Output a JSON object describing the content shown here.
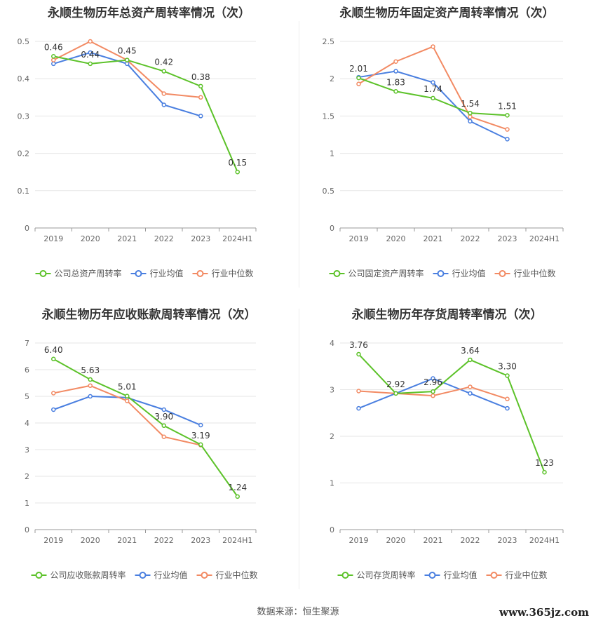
{
  "footer": {
    "source": "数据来源：恒生聚源",
    "watermark": "www.365jz.com"
  },
  "colors": {
    "company": "#5cc229",
    "avg": "#4a7fe0",
    "median": "#f28a63",
    "grid": "#e6e6e6",
    "axis": "#999999"
  },
  "chart_data": [
    {
      "type": "line",
      "title": "永顺生物历年总资产周转率情况（次）",
      "categories": [
        "2019",
        "2020",
        "2021",
        "2022",
        "2023",
        "2024H1"
      ],
      "ylim": [
        0,
        0.5
      ],
      "yticks": [
        0,
        0.1,
        0.2,
        0.3,
        0.4,
        0.5
      ],
      "series": [
        {
          "name": "公司总资产周转率",
          "values": [
            0.46,
            0.44,
            0.45,
            0.42,
            0.38,
            0.15
          ],
          "labels": [
            "0.46",
            "0.44",
            "0.45",
            "0.42",
            "0.38",
            "0.15"
          ]
        },
        {
          "name": "行业均值",
          "values": [
            0.44,
            0.47,
            0.44,
            0.33,
            0.3,
            null
          ]
        },
        {
          "name": "行业中位数",
          "values": [
            0.45,
            0.5,
            0.45,
            0.36,
            0.35,
            null
          ]
        }
      ]
    },
    {
      "type": "line",
      "title": "永顺生物历年固定资产周转率情况（次）",
      "categories": [
        "2019",
        "2020",
        "2021",
        "2022",
        "2023",
        "2024H1"
      ],
      "ylim": [
        0,
        2.5
      ],
      "yticks": [
        0,
        0.5,
        1,
        1.5,
        2,
        2.5
      ],
      "series": [
        {
          "name": "公司固定资产周转率",
          "values": [
            2.01,
            1.83,
            1.74,
            1.54,
            1.51,
            null
          ],
          "labels": [
            "2.01",
            "1.83",
            "1.74",
            "1.54",
            "1.51",
            ""
          ]
        },
        {
          "name": "行业均值",
          "values": [
            2.02,
            2.1,
            1.95,
            1.43,
            1.19,
            null
          ]
        },
        {
          "name": "行业中位数",
          "values": [
            1.93,
            2.23,
            2.43,
            1.49,
            1.32,
            null
          ]
        }
      ]
    },
    {
      "type": "line",
      "title": "永顺生物历年应收账款周转率情况（次）",
      "categories": [
        "2019",
        "2020",
        "2021",
        "2022",
        "2023",
        "2024H1"
      ],
      "ylim": [
        0,
        7
      ],
      "yticks": [
        0,
        1,
        2,
        3,
        4,
        5,
        6,
        7
      ],
      "series": [
        {
          "name": "公司应收账款周转率",
          "values": [
            6.4,
            5.63,
            5.01,
            3.9,
            3.19,
            1.24
          ],
          "labels": [
            "6.40",
            "5.63",
            "5.01",
            "3.90",
            "3.19",
            "1.24"
          ]
        },
        {
          "name": "行业均值",
          "values": [
            4.5,
            5.0,
            4.95,
            4.5,
            3.92,
            null
          ]
        },
        {
          "name": "行业中位数",
          "values": [
            5.12,
            5.4,
            4.83,
            3.48,
            3.17,
            null
          ]
        }
      ]
    },
    {
      "type": "line",
      "title": "永顺生物历年存货周转率情况（次）",
      "categories": [
        "2019",
        "2020",
        "2021",
        "2022",
        "2023",
        "2024H1"
      ],
      "ylim": [
        0,
        4
      ],
      "yticks": [
        0,
        1,
        2,
        3,
        4
      ],
      "series": [
        {
          "name": "公司存货周转率",
          "values": [
            3.76,
            2.92,
            2.96,
            3.64,
            3.3,
            1.23
          ],
          "labels": [
            "3.76",
            "2.92",
            "2.96",
            "3.64",
            "3.30",
            "1.23"
          ]
        },
        {
          "name": "行业均值",
          "values": [
            2.6,
            2.92,
            3.24,
            2.92,
            2.6,
            null
          ]
        },
        {
          "name": "行业中位数",
          "values": [
            2.97,
            2.92,
            2.87,
            3.06,
            2.8,
            null
          ]
        }
      ]
    }
  ]
}
